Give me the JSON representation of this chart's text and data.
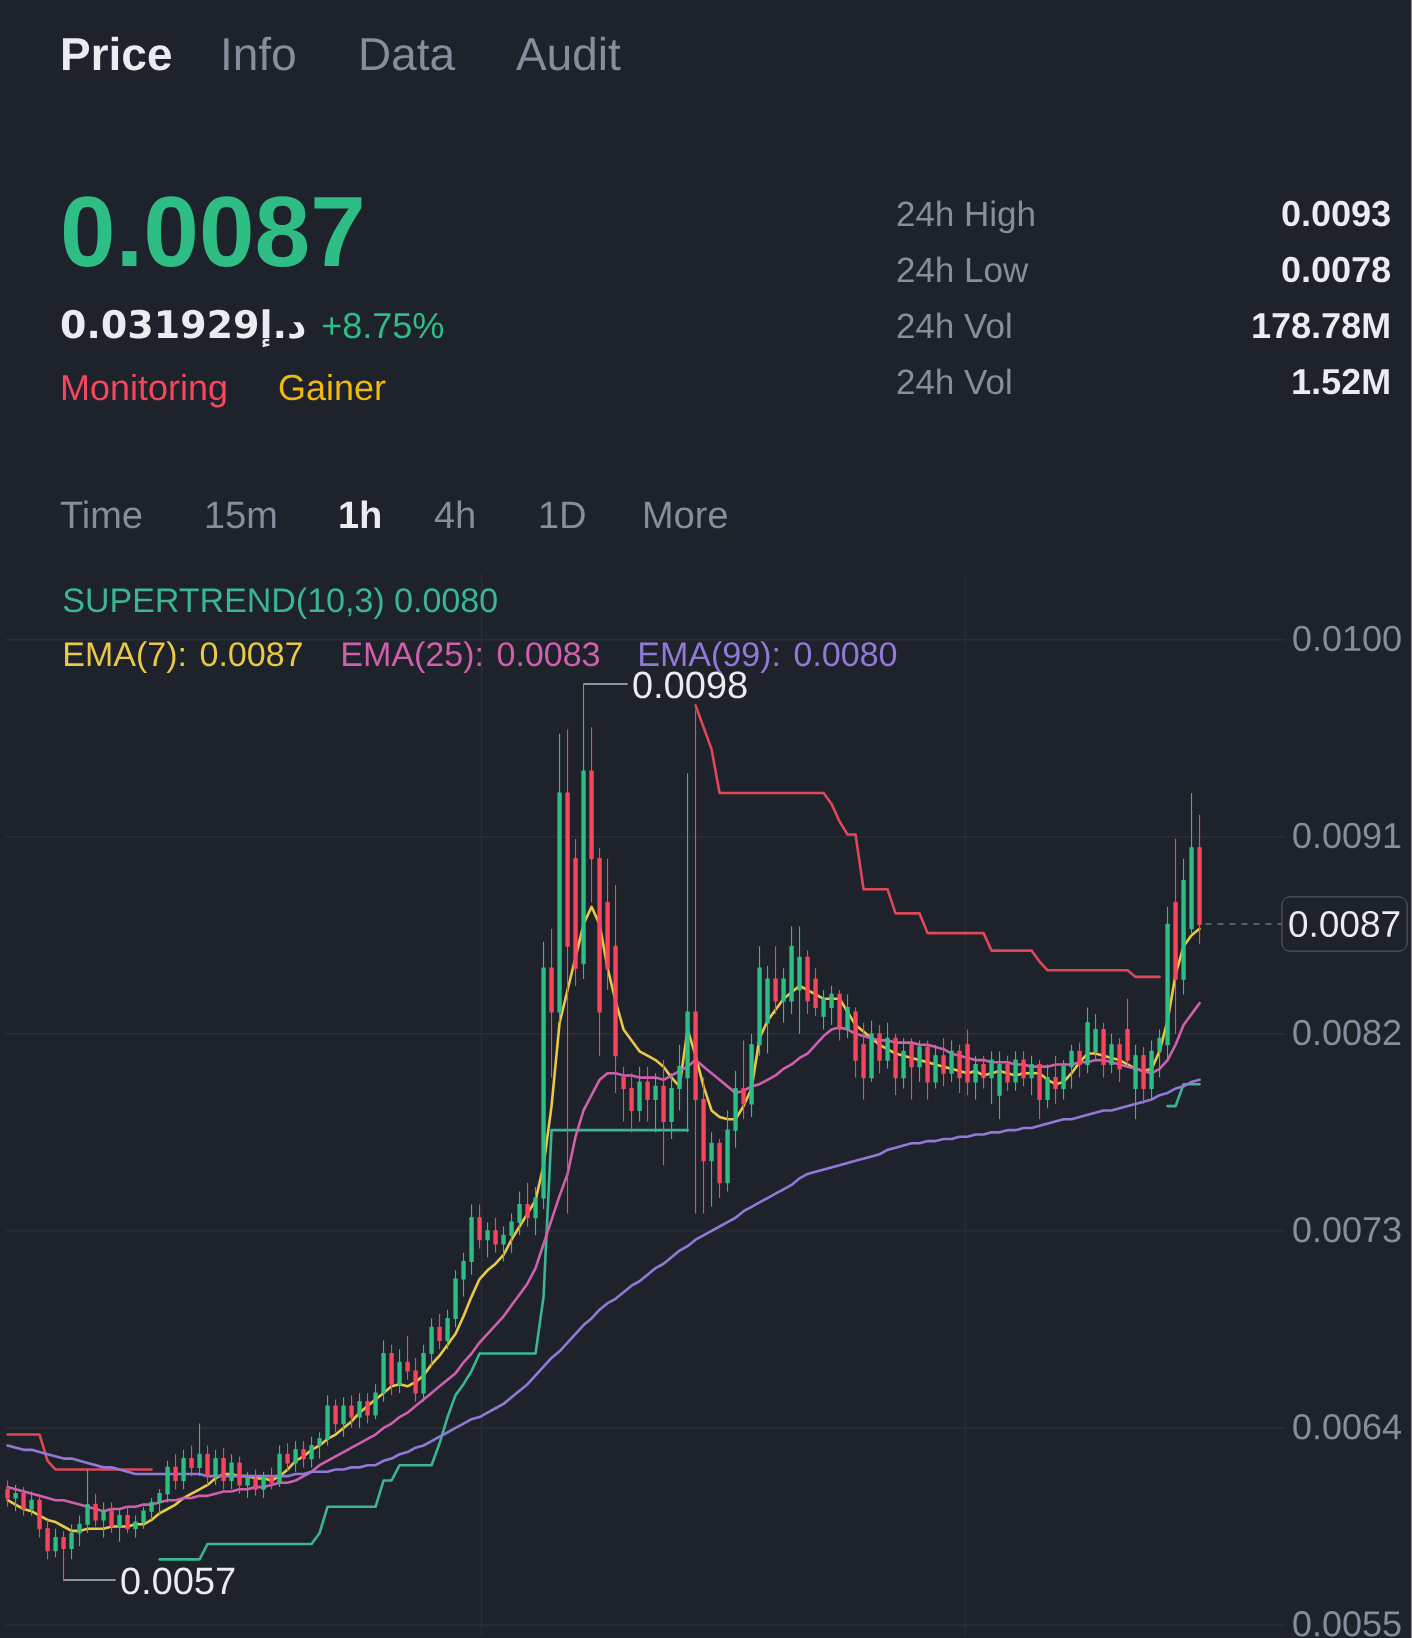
{
  "chart_data": {
    "type": "candlestick",
    "title": "0.0087",
    "subtitle": "0.031929إ.د",
    "categories": [
      null,
      null,
      null,
      null,
      null,
      null,
      null,
      null,
      null,
      null,
      null,
      null,
      null,
      null,
      null,
      null,
      null,
      null,
      null,
      null,
      null,
      null,
      null,
      null,
      null,
      null,
      null,
      null,
      null,
      null,
      null,
      null,
      null,
      null,
      null,
      null,
      null,
      null,
      null,
      null,
      null,
      null,
      null,
      null,
      null,
      null,
      null,
      null,
      null,
      null,
      null,
      null,
      null,
      null,
      null,
      null,
      null,
      null,
      null,
      null,
      null,
      null,
      null,
      null,
      null,
      null,
      null,
      null,
      null,
      null,
      null,
      null,
      null,
      null,
      null,
      null,
      null,
      null,
      null,
      null,
      null,
      null,
      null,
      null,
      null,
      null,
      null,
      null,
      null,
      null,
      null,
      null,
      null,
      null,
      null,
      null,
      null,
      null,
      null,
      null,
      null,
      null,
      null,
      null,
      null,
      null,
      null,
      null,
      null,
      null,
      null,
      null,
      null,
      null,
      null,
      null,
      null,
      null,
      null,
      null,
      null,
      null,
      null,
      null,
      null,
      null,
      null,
      null,
      null,
      null,
      null,
      null,
      null,
      null,
      null,
      null,
      null,
      null,
      null,
      null,
      null,
      null,
      null,
      null,
      null,
      null,
      null,
      null,
      null,
      null
    ],
    "ohlc": [
      [
        0.00612,
        0.00616,
        0.00604,
        0.00608
      ],
      [
        0.00608,
        0.00614,
        0.00602,
        0.0061
      ],
      [
        0.0061,
        0.00613,
        0.006,
        0.00603
      ],
      [
        0.00603,
        0.00611,
        0.006,
        0.00607
      ],
      [
        0.00607,
        0.0061,
        0.0059,
        0.00594
      ],
      [
        0.00594,
        0.00598,
        0.0058,
        0.00584
      ],
      [
        0.00584,
        0.00594,
        0.00581,
        0.0059
      ],
      [
        0.0059,
        0.00593,
        0.0057,
        0.00585
      ],
      [
        0.00585,
        0.00596,
        0.0058,
        0.00592
      ],
      [
        0.00592,
        0.006,
        0.00586,
        0.00596
      ],
      [
        0.00596,
        0.00621,
        0.00592,
        0.00605
      ],
      [
        0.00605,
        0.0061,
        0.00595,
        0.00598
      ],
      [
        0.00598,
        0.00606,
        0.0059,
        0.00602
      ],
      [
        0.00602,
        0.00606,
        0.00592,
        0.00595
      ],
      [
        0.00595,
        0.00603,
        0.00588,
        0.006
      ],
      [
        0.006,
        0.00604,
        0.00592,
        0.00594
      ],
      [
        0.00594,
        0.006,
        0.0059,
        0.00597
      ],
      [
        0.00597,
        0.00604,
        0.00594,
        0.00602
      ],
      [
        0.00602,
        0.00608,
        0.00598,
        0.00606
      ],
      [
        0.00606,
        0.00612,
        0.006,
        0.0061
      ],
      [
        0.0061,
        0.00625,
        0.00606,
        0.00622
      ],
      [
        0.00622,
        0.00628,
        0.00612,
        0.00616
      ],
      [
        0.00616,
        0.0063,
        0.00612,
        0.00626
      ],
      [
        0.00626,
        0.00632,
        0.00618,
        0.00622
      ],
      [
        0.00622,
        0.00642,
        0.00618,
        0.00628
      ],
      [
        0.00628,
        0.00632,
        0.00614,
        0.00618
      ],
      [
        0.00618,
        0.0063,
        0.00614,
        0.00626
      ],
      [
        0.00626,
        0.00631,
        0.00612,
        0.00616
      ],
      [
        0.00616,
        0.00628,
        0.00612,
        0.00624
      ],
      [
        0.00624,
        0.00627,
        0.0061,
        0.00614
      ],
      [
        0.00614,
        0.0062,
        0.00608,
        0.00617
      ],
      [
        0.00617,
        0.00621,
        0.00609,
        0.00612
      ],
      [
        0.00612,
        0.0062,
        0.00608,
        0.00618
      ],
      [
        0.00618,
        0.00622,
        0.00612,
        0.00615
      ],
      [
        0.00615,
        0.00632,
        0.00613,
        0.00628
      ],
      [
        0.00628,
        0.00633,
        0.0062,
        0.00624
      ],
      [
        0.00624,
        0.00634,
        0.0062,
        0.0063
      ],
      [
        0.0063,
        0.00634,
        0.00622,
        0.00626
      ],
      [
        0.00626,
        0.00636,
        0.00622,
        0.00632
      ],
      [
        0.00632,
        0.00638,
        0.00626,
        0.00635
      ],
      [
        0.00635,
        0.00655,
        0.00632,
        0.0065
      ],
      [
        0.0065,
        0.00653,
        0.00638,
        0.00642
      ],
      [
        0.00642,
        0.00654,
        0.00636,
        0.0065
      ],
      [
        0.0065,
        0.00655,
        0.0064,
        0.00645
      ],
      [
        0.00645,
        0.00656,
        0.0064,
        0.00652
      ],
      [
        0.00652,
        0.00656,
        0.00642,
        0.00646
      ],
      [
        0.00646,
        0.0066,
        0.00644,
        0.00656
      ],
      [
        0.00656,
        0.0068,
        0.00652,
        0.00674
      ],
      [
        0.00674,
        0.00678,
        0.00655,
        0.0066
      ],
      [
        0.0066,
        0.00676,
        0.00656,
        0.0067
      ],
      [
        0.0067,
        0.00682,
        0.00662,
        0.00666
      ],
      [
        0.00666,
        0.00672,
        0.00652,
        0.00656
      ],
      [
        0.00656,
        0.00678,
        0.00652,
        0.00674
      ],
      [
        0.00674,
        0.0069,
        0.00668,
        0.00686
      ],
      [
        0.00686,
        0.00692,
        0.00676,
        0.0068
      ],
      [
        0.0068,
        0.00694,
        0.00676,
        0.0069
      ],
      [
        0.0069,
        0.00712,
        0.00686,
        0.00708
      ],
      [
        0.00708,
        0.0072,
        0.007,
        0.00716
      ],
      [
        0.00716,
        0.00742,
        0.0071,
        0.00736
      ],
      [
        0.00736,
        0.00742,
        0.00722,
        0.00726
      ],
      [
        0.00726,
        0.00734,
        0.00718,
        0.0073
      ],
      [
        0.0073,
        0.00736,
        0.0072,
        0.00724
      ],
      [
        0.00724,
        0.00732,
        0.00716,
        0.00728
      ],
      [
        0.00728,
        0.00738,
        0.0072,
        0.00734
      ],
      [
        0.00734,
        0.00748,
        0.00728,
        0.00742
      ],
      [
        0.00742,
        0.00752,
        0.00732,
        0.00736
      ],
      [
        0.00736,
        0.0075,
        0.00728,
        0.00745
      ],
      [
        0.00745,
        0.00862,
        0.0074,
        0.0085
      ],
      [
        0.0085,
        0.00868,
        0.008,
        0.0083
      ],
      [
        0.0083,
        0.00957,
        0.00825,
        0.0093
      ],
      [
        0.0093,
        0.00959,
        0.00738,
        0.0086
      ],
      [
        0.009,
        0.00909,
        0.00842,
        0.0085
      ],
      [
        0.00852,
        0.0098,
        0.00845,
        0.0094
      ],
      [
        0.0094,
        0.0096,
        0.0088,
        0.009
      ],
      [
        0.009,
        0.00905,
        0.0081,
        0.0083
      ],
      [
        0.0088,
        0.009,
        0.0084,
        0.0085
      ],
      [
        0.0086,
        0.00888,
        0.00793,
        0.0081
      ],
      [
        0.008,
        0.00805,
        0.0078,
        0.00795
      ],
      [
        0.00795,
        0.00802,
        0.00775,
        0.00785
      ],
      [
        0.00785,
        0.00805,
        0.0078,
        0.00798
      ],
      [
        0.00798,
        0.00805,
        0.0078,
        0.0079
      ],
      [
        0.0079,
        0.00802,
        0.00775,
        0.00796
      ],
      [
        0.00796,
        0.00808,
        0.0076,
        0.0078
      ],
      [
        0.0078,
        0.00802,
        0.00772,
        0.00795
      ],
      [
        0.00795,
        0.00815,
        0.00785,
        0.00805
      ],
      [
        0.008,
        0.00939,
        0.00775,
        0.0083
      ],
      [
        0.0083,
        0.00968,
        0.00738,
        0.0079
      ],
      [
        0.0079,
        0.008,
        0.00738,
        0.00762
      ],
      [
        0.00762,
        0.00775,
        0.00741,
        0.0077
      ],
      [
        0.0077,
        0.00772,
        0.00745,
        0.00752
      ],
      [
        0.00752,
        0.00785,
        0.00748,
        0.00776
      ],
      [
        0.00776,
        0.00803,
        0.00768,
        0.00795
      ],
      [
        0.00795,
        0.00817,
        0.00781,
        0.00788
      ],
      [
        0.00788,
        0.0082,
        0.00782,
        0.00815
      ],
      [
        0.00815,
        0.0086,
        0.0081,
        0.0085
      ],
      [
        0.00825,
        0.00851,
        0.00811,
        0.00845
      ],
      [
        0.00845,
        0.0086,
        0.00829,
        0.00835
      ],
      [
        0.00835,
        0.0085,
        0.00825,
        0.00845
      ],
      [
        0.00835,
        0.00869,
        0.00829,
        0.0086
      ],
      [
        0.0084,
        0.00869,
        0.0082,
        0.00855
      ],
      [
        0.00855,
        0.00858,
        0.00829,
        0.00835
      ],
      [
        0.00845,
        0.0085,
        0.00828,
        0.00832
      ],
      [
        0.00828,
        0.0084,
        0.00822,
        0.00836
      ],
      [
        0.00832,
        0.00842,
        0.00824,
        0.00838
      ],
      [
        0.00838,
        0.0084,
        0.00817,
        0.00822
      ],
      [
        0.00822,
        0.00838,
        0.00818,
        0.00832
      ],
      [
        0.0083,
        0.00832,
        0.008,
        0.00808
      ],
      [
        0.00815,
        0.00825,
        0.0079,
        0.008
      ],
      [
        0.008,
        0.00826,
        0.00798,
        0.0082
      ],
      [
        0.0082,
        0.00824,
        0.00802,
        0.00808
      ],
      [
        0.00808,
        0.00825,
        0.00804,
        0.00818
      ],
      [
        0.00818,
        0.0082,
        0.00792,
        0.008
      ],
      [
        0.008,
        0.00818,
        0.00795,
        0.00812
      ],
      [
        0.00815,
        0.00818,
        0.0079,
        0.00805
      ],
      [
        0.00805,
        0.00817,
        0.00798,
        0.00814
      ],
      [
        0.00814,
        0.00817,
        0.0079,
        0.00798
      ],
      [
        0.00798,
        0.00815,
        0.00795,
        0.0081
      ],
      [
        0.0081,
        0.00818,
        0.00796,
        0.00802
      ],
      [
        0.00802,
        0.00817,
        0.00798,
        0.00812
      ],
      [
        0.00812,
        0.00815,
        0.00793,
        0.008
      ],
      [
        0.00815,
        0.00822,
        0.00792,
        0.00798
      ],
      [
        0.00798,
        0.0081,
        0.0079,
        0.00806
      ],
      [
        0.00806,
        0.0081,
        0.00795,
        0.008
      ],
      [
        0.008,
        0.00812,
        0.00788,
        0.00808
      ],
      [
        0.00792,
        0.00812,
        0.00781,
        0.00806
      ],
      [
        0.00806,
        0.0081,
        0.00794,
        0.00798
      ],
      [
        0.00798,
        0.00812,
        0.00794,
        0.00808
      ],
      [
        0.00808,
        0.00812,
        0.00796,
        0.008
      ],
      [
        0.008,
        0.0081,
        0.00792,
        0.00806
      ],
      [
        0.00806,
        0.00808,
        0.00781,
        0.0079
      ],
      [
        0.0079,
        0.00806,
        0.00786,
        0.008
      ],
      [
        0.008,
        0.0081,
        0.00788,
        0.00795
      ],
      [
        0.00795,
        0.00808,
        0.0079,
        0.00805
      ],
      [
        0.00805,
        0.00815,
        0.00795,
        0.00812
      ],
      [
        0.00812,
        0.00816,
        0.008,
        0.00806
      ],
      [
        0.00806,
        0.00832,
        0.00802,
        0.00825
      ],
      [
        0.00812,
        0.00829,
        0.00808,
        0.00822
      ],
      [
        0.00822,
        0.00825,
        0.008,
        0.00806
      ],
      [
        0.00806,
        0.0082,
        0.00802,
        0.00815
      ],
      [
        0.00815,
        0.00818,
        0.00798,
        0.00804
      ],
      [
        0.00822,
        0.00836,
        0.00805,
        0.00808
      ],
      [
        0.00795,
        0.00815,
        0.00781,
        0.0081
      ],
      [
        0.0081,
        0.00814,
        0.00788,
        0.00795
      ],
      [
        0.00795,
        0.00817,
        0.0079,
        0.00812
      ],
      [
        0.00812,
        0.00822,
        0.008,
        0.00818
      ],
      [
        0.00815,
        0.00878,
        0.00808,
        0.0087
      ],
      [
        0.0088,
        0.00909,
        0.0082,
        0.00845
      ],
      [
        0.00845,
        0.009,
        0.00838,
        0.0089
      ],
      [
        0.00868,
        0.0093,
        0.00866,
        0.00905
      ],
      [
        0.00905,
        0.0092,
        0.00861,
        0.0087
      ]
    ],
    "colors": [
      "#f6465d",
      "#2ebd85",
      "#f6465d",
      "#2ebd85",
      "#f6465d",
      "#f6465d",
      "#2ebd85",
      "#f6465d",
      "#2ebd85",
      "#2ebd85",
      "#2ebd85",
      "#f6465d",
      "#2ebd85",
      "#f6465d",
      "#2ebd85",
      "#f6465d",
      "#2ebd85",
      "#2ebd85",
      "#2ebd85",
      "#2ebd85",
      "#2ebd85",
      "#f6465d",
      "#2ebd85",
      "#f6465d",
      "#2ebd85",
      "#f6465d",
      "#2ebd85",
      "#f6465d",
      "#2ebd85",
      "#f6465d",
      "#2ebd85",
      "#f6465d",
      "#2ebd85",
      "#f6465d",
      "#2ebd85",
      "#f6465d",
      "#2ebd85",
      "#f6465d",
      "#2ebd85",
      "#2ebd85",
      "#2ebd85",
      "#f6465d",
      "#2ebd85",
      "#f6465d",
      "#2ebd85",
      "#f6465d",
      "#2ebd85",
      "#2ebd85",
      "#f6465d",
      "#2ebd85",
      "#f6465d",
      "#f6465d",
      "#2ebd85",
      "#2ebd85",
      "#f6465d",
      "#2ebd85",
      "#2ebd85",
      "#2ebd85",
      "#2ebd85",
      "#f6465d",
      "#2ebd85",
      "#f6465d",
      "#2ebd85",
      "#2ebd85",
      "#2ebd85",
      "#f6465d",
      "#2ebd85",
      "#2ebd85",
      "#f6465d",
      "#2ebd85",
      "#f6465d",
      "#f6465d",
      "#2ebd85",
      "#f6465d",
      "#f6465d",
      "#f6465d",
      "#f6465d",
      "#f6465d",
      "#f6465d",
      "#2ebd85",
      "#f6465d",
      "#2ebd85",
      "#f6465d",
      "#2ebd85",
      "#2ebd85",
      "#2ebd85",
      "#f6465d",
      "#f6465d",
      "#2ebd85",
      "#f6465d",
      "#2ebd85",
      "#2ebd85",
      "#f6465d",
      "#2ebd85",
      "#2ebd85",
      "#2ebd85",
      "#f6465d",
      "#2ebd85",
      "#2ebd85",
      "#2ebd85",
      "#f6465d",
      "#f6465d",
      "#2ebd85",
      "#2ebd85",
      "#f6465d",
      "#2ebd85",
      "#f6465d",
      "#f6465d",
      "#2ebd85",
      "#f6465d",
      "#2ebd85",
      "#f6465d",
      "#2ebd85",
      "#f6465d",
      "#2ebd85",
      "#f6465d",
      "#2ebd85",
      "#f6465d",
      "#2ebd85",
      "#f6465d",
      "#f6465d",
      "#2ebd85",
      "#f6465d",
      "#2ebd85",
      "#2ebd85",
      "#f6465d",
      "#2ebd85",
      "#f6465d",
      "#2ebd85",
      "#f6465d",
      "#2ebd85",
      "#f6465d",
      "#2ebd85",
      "#2ebd85",
      "#f6465d",
      "#2ebd85",
      "#2ebd85",
      "#f6465d",
      "#2ebd85",
      "#f6465d",
      "#f6465d",
      "#2ebd85",
      "#f6465d",
      "#2ebd85",
      "#2ebd85",
      "#2ebd85",
      "#f6465d",
      "#2ebd85",
      "#2ebd85",
      "#f6465d"
    ],
    "series": [
      {
        "name": "SUPERTREND(10,3) 0.0080",
        "type": "line",
        "color": "#3bb592",
        "values": [
          null,
          null,
          null,
          null,
          null,
          null,
          null,
          null,
          null,
          null,
          null,
          null,
          null,
          null,
          null,
          null,
          null,
          null,
          null,
          0.0058,
          0.0058,
          0.0058,
          0.0058,
          0.0058,
          0.0058,
          0.00587,
          0.00587,
          0.00587,
          0.00587,
          0.00587,
          0.00587,
          0.00587,
          0.00587,
          0.00587,
          0.00587,
          0.00587,
          0.00587,
          0.00587,
          0.00587,
          0.00592,
          0.00604,
          0.00604,
          0.00604,
          0.00604,
          0.00604,
          0.00604,
          0.00604,
          0.00616,
          0.00616,
          0.00623,
          0.00623,
          0.00623,
          0.00623,
          0.00623,
          0.00633,
          0.00645,
          0.00655,
          0.0066,
          0.00666,
          0.00674,
          0.00674,
          0.00674,
          0.00674,
          0.00674,
          0.00674,
          0.00674,
          0.00674,
          0.007,
          0.00776,
          0.00776,
          0.00776,
          0.00776,
          0.00776,
          0.00776,
          0.00776,
          0.00776,
          0.00776,
          0.00776,
          0.00776,
          0.00776,
          0.00776,
          0.00776,
          0.00776,
          0.00776,
          0.00776,
          0.00776,
          null,
          null,
          null,
          null,
          null,
          null,
          null,
          null,
          null,
          null,
          null,
          null,
          null,
          null,
          null,
          null,
          null,
          null,
          null,
          null,
          null,
          null,
          null,
          null,
          null,
          null,
          null,
          null,
          null,
          null,
          null,
          null,
          null,
          null,
          null,
          null,
          null,
          null,
          null,
          null,
          null,
          null,
          null,
          null,
          null,
          null,
          null,
          null,
          null,
          null,
          null,
          null,
          null,
          null,
          null,
          null,
          null,
          null,
          null,
          0.00787,
          0.00787,
          0.00797,
          0.00797,
          0.00797
        ]
      },
      {
        "type": "line",
        "color": "#e0485a",
        "values": [
          0.00637,
          0.00637,
          0.00637,
          0.00637,
          0.00637,
          0.00625,
          0.00621,
          0.00621,
          0.00621,
          0.00621,
          0.00621,
          0.00621,
          0.00621,
          0.00621,
          0.00621,
          0.00621,
          0.00621,
          0.00621,
          0.00621,
          null,
          null,
          null,
          null,
          null,
          null,
          null,
          null,
          null,
          null,
          null,
          null,
          null,
          null,
          null,
          null,
          null,
          null,
          null,
          null,
          null,
          null,
          null,
          null,
          null,
          null,
          null,
          null,
          null,
          null,
          null,
          null,
          null,
          null,
          null,
          null,
          null,
          null,
          null,
          null,
          null,
          null,
          null,
          null,
          null,
          null,
          null,
          null,
          null,
          null,
          null,
          null,
          null,
          null,
          null,
          null,
          null,
          null,
          null,
          null,
          null,
          null,
          null,
          null,
          null,
          null,
          null,
          0.0097,
          0.0096,
          0.0095,
          0.0093,
          0.0093,
          0.0093,
          0.0093,
          0.0093,
          0.0093,
          0.0093,
          0.0093,
          0.0093,
          0.0093,
          0.0093,
          0.0093,
          0.0093,
          0.0093,
          0.00925,
          0.00917,
          0.00911,
          0.00911,
          0.00886,
          0.00886,
          0.00886,
          0.00886,
          0.00875,
          0.00875,
          0.00875,
          0.00875,
          0.00866,
          0.00866,
          0.00866,
          0.00866,
          0.00866,
          0.00866,
          0.00866,
          0.00866,
          0.00858,
          0.00858,
          0.00858,
          0.00858,
          0.00858,
          0.00858,
          0.00853,
          0.00849,
          0.00849,
          0.00849,
          0.00849,
          0.00849,
          0.00849,
          0.00849,
          0.00849,
          0.00849,
          0.00849,
          0.00849,
          0.00846,
          0.00846,
          0.00846,
          0.00846,
          null,
          null,
          null,
          null,
          null
        ]
      },
      {
        "name": "EMA(7): 0.0087",
        "type": "line",
        "color": "#e9c84a",
        "values": [
          0.00607,
          0.00605,
          0.00603,
          0.00602,
          0.006,
          0.00598,
          0.00597,
          0.00595,
          0.00593,
          0.00593,
          0.00594,
          0.00594,
          0.00594,
          0.00595,
          0.00595,
          0.00595,
          0.00596,
          0.00596,
          0.00598,
          0.00601,
          0.00603,
          0.00605,
          0.00608,
          0.0061,
          0.00612,
          0.00614,
          0.00617,
          0.00619,
          0.00619,
          0.00618,
          0.00618,
          0.00617,
          0.00617,
          0.00616,
          0.00618,
          0.00621,
          0.00625,
          0.00627,
          0.0063,
          0.00632,
          0.00635,
          0.00637,
          0.0064,
          0.00643,
          0.00647,
          0.0065,
          0.00653,
          0.00656,
          0.00659,
          0.0066,
          0.00659,
          0.00661,
          0.00664,
          0.00669,
          0.00673,
          0.00678,
          0.00683,
          0.00691,
          0.007,
          0.00708,
          0.00712,
          0.00715,
          0.00719,
          0.00726,
          0.00732,
          0.00738,
          0.00744,
          0.0076,
          0.00787,
          0.00825,
          0.0084,
          0.00855,
          0.0087,
          0.00878,
          0.0087,
          0.0085,
          0.00835,
          0.00822,
          0.00817,
          0.00812,
          0.0081,
          0.00808,
          0.00805,
          0.008,
          0.00796,
          0.00822,
          0.0081,
          0.00796,
          0.00785,
          0.00782,
          0.00781,
          0.00781,
          0.00787,
          0.00795,
          0.00818,
          0.00826,
          0.00831,
          0.00836,
          0.00839,
          0.00842,
          0.0084,
          0.00838,
          0.00836,
          0.00836,
          0.00836,
          0.0083,
          0.00824,
          0.00821,
          0.00818,
          0.00815,
          0.00813,
          0.00811,
          0.0081,
          0.00809,
          0.00808,
          0.00807,
          0.00806,
          0.00805,
          0.00804,
          0.00803,
          0.00802,
          0.00803,
          0.00801,
          0.00802,
          0.00803,
          0.00802,
          0.00801,
          0.00802,
          0.00802,
          0.00802,
          0.00799,
          0.00797,
          0.00798,
          0.00802,
          0.00807,
          0.00811,
          0.00811,
          0.0081,
          0.00809,
          0.00808,
          0.00806,
          0.00804,
          0.00803,
          0.00804,
          0.00812,
          0.00826,
          0.00847,
          0.0086,
          0.00865,
          0.00868
        ]
      },
      {
        "name": "EMA(25): 0.0083",
        "type": "line",
        "color": "#d060ad",
        "values": [
          0.00613,
          0.00612,
          0.00611,
          0.0061,
          0.00609,
          0.00608,
          0.00607,
          0.00607,
          0.00606,
          0.00605,
          0.00604,
          0.00603,
          0.00602,
          0.00603,
          0.00603,
          0.00604,
          0.00604,
          0.00605,
          0.00605,
          0.00606,
          0.00607,
          0.00607,
          0.00608,
          0.00608,
          0.00609,
          0.00609,
          0.0061,
          0.00611,
          0.00611,
          0.00612,
          0.00612,
          0.00613,
          0.00613,
          0.00614,
          0.00615,
          0.00615,
          0.00616,
          0.00618,
          0.0062,
          0.00623,
          0.00625,
          0.00627,
          0.00629,
          0.00631,
          0.00633,
          0.00635,
          0.00637,
          0.0064,
          0.00642,
          0.00645,
          0.00647,
          0.0065,
          0.00653,
          0.00656,
          0.00659,
          0.00662,
          0.00665,
          0.0067,
          0.00674,
          0.00679,
          0.00683,
          0.00687,
          0.00691,
          0.00696,
          0.00701,
          0.00706,
          0.00713,
          0.00724,
          0.00735,
          0.00746,
          0.00756,
          0.00773,
          0.00785,
          0.00792,
          0.00799,
          0.00802,
          0.00802,
          0.00801,
          0.00801,
          0.008,
          0.008,
          0.008,
          0.00799,
          0.00801,
          0.00803,
          0.00805,
          0.00808,
          0.00805,
          0.00802,
          0.00799,
          0.00796,
          0.00793,
          0.00794,
          0.00796,
          0.00797,
          0.00799,
          0.00801,
          0.00804,
          0.00806,
          0.00809,
          0.00811,
          0.00815,
          0.00819,
          0.00822,
          0.00823,
          0.00822,
          0.0082,
          0.00819,
          0.00818,
          0.00817,
          0.00817,
          0.00816,
          0.00816,
          0.00816,
          0.00815,
          0.00815,
          0.00814,
          0.00813,
          0.00811,
          0.0081,
          0.00809,
          0.00808,
          0.00808,
          0.00807,
          0.00807,
          0.00807,
          0.00806,
          0.00806,
          0.00805,
          0.00805,
          0.00805,
          0.00806,
          0.00806,
          0.00806,
          0.00807,
          0.00807,
          0.00808,
          0.00808,
          0.00807,
          0.00806,
          0.00805,
          0.00804,
          0.00803,
          0.00802,
          0.00804,
          0.00808,
          0.00815,
          0.00824,
          0.00829,
          0.00834
        ]
      },
      {
        "name": "EMA(99): 0.0080",
        "type": "line",
        "color": "#9279d8",
        "values": [
          0.00632,
          0.00631,
          0.0063,
          0.0063,
          0.00629,
          0.00628,
          0.00627,
          0.00626,
          0.00626,
          0.00625,
          0.00624,
          0.00623,
          0.00622,
          0.00622,
          0.00621,
          0.0062,
          0.00619,
          0.00619,
          0.00619,
          0.00619,
          0.00619,
          0.00619,
          0.00619,
          0.00619,
          0.00619,
          0.00618,
          0.00618,
          0.00618,
          0.00618,
          0.00618,
          0.00618,
          0.00618,
          0.00618,
          0.00618,
          0.00618,
          0.00618,
          0.00619,
          0.00619,
          0.0062,
          0.0062,
          0.0062,
          0.00621,
          0.00621,
          0.00622,
          0.00622,
          0.00623,
          0.00623,
          0.00625,
          0.00626,
          0.00628,
          0.00629,
          0.00631,
          0.00632,
          0.00634,
          0.00636,
          0.00638,
          0.0064,
          0.00642,
          0.00644,
          0.00645,
          0.00647,
          0.00649,
          0.00651,
          0.00654,
          0.00657,
          0.0066,
          0.00664,
          0.00668,
          0.00672,
          0.00675,
          0.00679,
          0.00683,
          0.00687,
          0.0069,
          0.00694,
          0.00697,
          0.00699,
          0.00702,
          0.00705,
          0.00707,
          0.0071,
          0.00713,
          0.00715,
          0.00718,
          0.00721,
          0.00723,
          0.00726,
          0.00728,
          0.0073,
          0.00732,
          0.00734,
          0.00736,
          0.00739,
          0.00741,
          0.00743,
          0.00745,
          0.00747,
          0.00749,
          0.00751,
          0.00754,
          0.00756,
          0.00757,
          0.00758,
          0.00759,
          0.0076,
          0.00761,
          0.00762,
          0.00763,
          0.00764,
          0.00765,
          0.00767,
          0.00768,
          0.00769,
          0.0077,
          0.0077,
          0.00771,
          0.00771,
          0.00772,
          0.00772,
          0.00773,
          0.00773,
          0.00774,
          0.00774,
          0.00775,
          0.00775,
          0.00776,
          0.00776,
          0.00777,
          0.00777,
          0.00778,
          0.00779,
          0.0078,
          0.00781,
          0.00781,
          0.00782,
          0.00783,
          0.00784,
          0.00785,
          0.00785,
          0.00786,
          0.00787,
          0.00788,
          0.00789,
          0.0079,
          0.00792,
          0.00793,
          0.00795,
          0.00796,
          0.00798,
          0.00799
        ]
      }
    ],
    "ylim": [
      0.00545,
      0.0103
    ],
    "yticks": [
      {
        "value": 0.01,
        "label": "0.0100"
      },
      0.0091,
      0.0082,
      0.0073,
      0.0064,
      0.0055
    ],
    "annotations": [
      "Price",
      "Info",
      "Data",
      "Audit",
      "+8.75%",
      "Monitoring",
      "Gainer",
      "24h High",
      "0.0093",
      "24h Low",
      "0.0078",
      "24h Vol",
      "178.78M",
      "24h Vol",
      "1.52M",
      "Time",
      "15m",
      "1h",
      "4h",
      "1D",
      "More",
      "0.0098",
      "0.0057",
      "0.0087"
    ],
    "grid": true,
    "legend": "top left",
    "tick_labels": "y"
  }
}
